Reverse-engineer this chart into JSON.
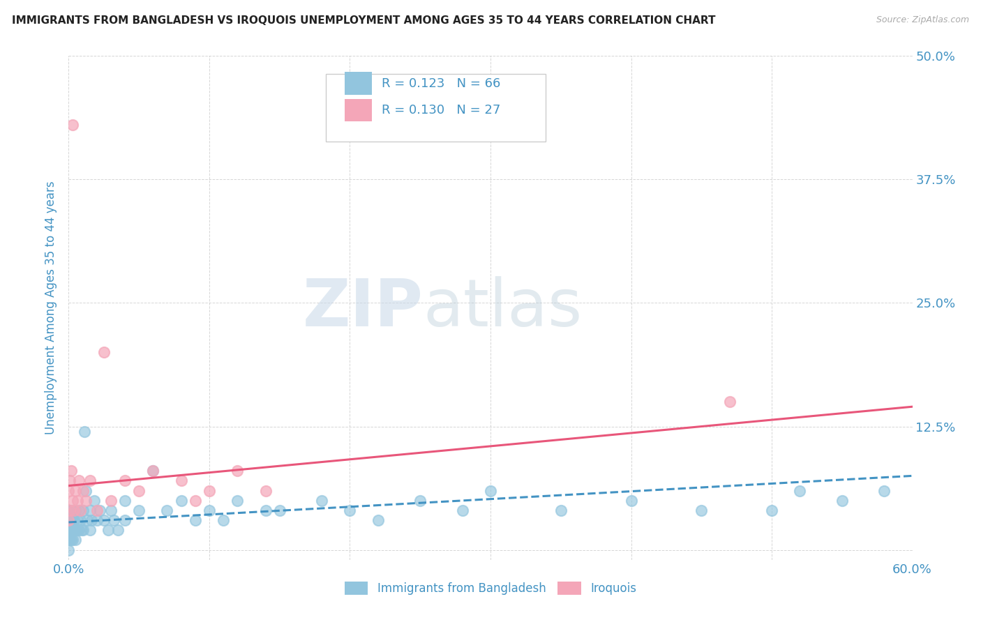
{
  "title": "IMMIGRANTS FROM BANGLADESH VS IROQUOIS UNEMPLOYMENT AMONG AGES 35 TO 44 YEARS CORRELATION CHART",
  "source": "Source: ZipAtlas.com",
  "ylabel": "Unemployment Among Ages 35 to 44 years",
  "xlim": [
    0.0,
    0.6
  ],
  "ylim": [
    -0.01,
    0.5
  ],
  "xticks": [
    0.0,
    0.1,
    0.2,
    0.3,
    0.4,
    0.5,
    0.6
  ],
  "xticklabels": [
    "0.0%",
    "",
    "",
    "",
    "",
    "",
    "60.0%"
  ],
  "yticks": [
    0.0,
    0.125,
    0.25,
    0.375,
    0.5
  ],
  "yticklabels_right": [
    "",
    "12.5%",
    "25.0%",
    "37.5%",
    "50.0%"
  ],
  "legend_r1": "R = 0.123",
  "legend_n1": "N = 66",
  "legend_r2": "R = 0.130",
  "legend_n2": "N = 27",
  "blue_color": "#92c5de",
  "pink_color": "#f4a6b8",
  "blue_line_color": "#4393c3",
  "pink_line_color": "#e8567a",
  "text_color": "#4393c3",
  "pink_text_color": "#e8567a",
  "watermark_zip": "ZIP",
  "watermark_atlas": "atlas",
  "scatter_blue_x": [
    0.0,
    0.0,
    0.0,
    0.0,
    0.0,
    0.001,
    0.001,
    0.001,
    0.002,
    0.002,
    0.002,
    0.003,
    0.003,
    0.003,
    0.004,
    0.004,
    0.005,
    0.005,
    0.005,
    0.006,
    0.006,
    0.007,
    0.007,
    0.008,
    0.009,
    0.01,
    0.01,
    0.011,
    0.012,
    0.013,
    0.015,
    0.015,
    0.016,
    0.018,
    0.02,
    0.022,
    0.025,
    0.028,
    0.03,
    0.032,
    0.035,
    0.04,
    0.04,
    0.05,
    0.06,
    0.07,
    0.08,
    0.09,
    0.1,
    0.11,
    0.12,
    0.14,
    0.15,
    0.18,
    0.2,
    0.22,
    0.25,
    0.28,
    0.3,
    0.35,
    0.4,
    0.45,
    0.5,
    0.52,
    0.55,
    0.58
  ],
  "scatter_blue_y": [
    0.01,
    0.02,
    0.03,
    0.04,
    0.0,
    0.02,
    0.03,
    0.01,
    0.02,
    0.04,
    0.01,
    0.03,
    0.02,
    0.01,
    0.03,
    0.02,
    0.04,
    0.02,
    0.01,
    0.03,
    0.02,
    0.04,
    0.02,
    0.03,
    0.02,
    0.04,
    0.02,
    0.12,
    0.06,
    0.03,
    0.04,
    0.02,
    0.03,
    0.05,
    0.03,
    0.04,
    0.03,
    0.02,
    0.04,
    0.03,
    0.02,
    0.05,
    0.03,
    0.04,
    0.08,
    0.04,
    0.05,
    0.03,
    0.04,
    0.03,
    0.05,
    0.04,
    0.04,
    0.05,
    0.04,
    0.03,
    0.05,
    0.04,
    0.06,
    0.04,
    0.05,
    0.04,
    0.04,
    0.06,
    0.05,
    0.06
  ],
  "scatter_pink_x": [
    0.0,
    0.0,
    0.001,
    0.001,
    0.002,
    0.003,
    0.003,
    0.004,
    0.005,
    0.006,
    0.007,
    0.008,
    0.01,
    0.012,
    0.015,
    0.02,
    0.025,
    0.03,
    0.04,
    0.05,
    0.06,
    0.08,
    0.09,
    0.1,
    0.12,
    0.47,
    0.14
  ],
  "scatter_pink_y": [
    0.03,
    0.06,
    0.04,
    0.07,
    0.08,
    0.05,
    0.43,
    0.04,
    0.06,
    0.05,
    0.07,
    0.04,
    0.06,
    0.05,
    0.07,
    0.04,
    0.2,
    0.05,
    0.07,
    0.06,
    0.08,
    0.07,
    0.05,
    0.06,
    0.08,
    0.15,
    0.06
  ],
  "blue_trend_x": [
    0.0,
    0.6
  ],
  "blue_trend_y": [
    0.028,
    0.075
  ],
  "pink_trend_x": [
    0.0,
    0.6
  ],
  "pink_trend_y": [
    0.065,
    0.145
  ],
  "background_color": "#ffffff",
  "grid_color": "#cccccc"
}
